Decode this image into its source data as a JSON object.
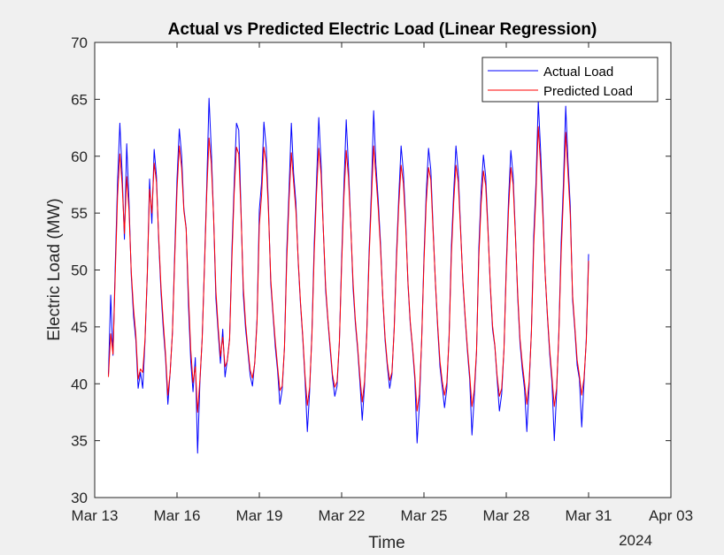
{
  "chart_data": {
    "type": "line",
    "title": "Actual vs Predicted Electric Load (Linear Regression)",
    "xlabel": "Time",
    "ylabel": "Electric Load (MW)",
    "year_label": "2024",
    "ylim": [
      30,
      70
    ],
    "y_ticks": [
      "30",
      "35",
      "40",
      "45",
      "50",
      "55",
      "60",
      "65",
      "70"
    ],
    "xlim": [
      "2024-03-13",
      "2024-04-03"
    ],
    "x_ticks": [
      {
        "date": "2024-03-13",
        "label": "Mar 13"
      },
      {
        "date": "2024-03-16",
        "label": "Mar 16"
      },
      {
        "date": "2024-03-19",
        "label": "Mar 19"
      },
      {
        "date": "2024-03-22",
        "label": "Mar 22"
      },
      {
        "date": "2024-03-25",
        "label": "Mar 25"
      },
      {
        "date": "2024-03-28",
        "label": "Mar 28"
      },
      {
        "date": "2024-03-31",
        "label": "Mar 31"
      },
      {
        "date": "2024-04-03",
        "label": "Apr 03"
      }
    ],
    "grid": false,
    "legend_position": "top-right",
    "x_start": "2024-03-13T12:00",
    "x_step_hours": 2,
    "series": [
      {
        "name": "Actual Load",
        "color": "#0000ff",
        "values": [
          40.8,
          47.8,
          42.5,
          50.5,
          57.8,
          62.9,
          58.5,
          52.7,
          61.1,
          56.0,
          49.5,
          45.9,
          43.8,
          39.6,
          41.0,
          39.6,
          43.7,
          49.5,
          58.0,
          54.1,
          60.6,
          58.3,
          52.5,
          48.0,
          44.8,
          42.2,
          38.2,
          41.0,
          44.5,
          51.6,
          58.0,
          62.4,
          60.1,
          55.4,
          53.7,
          46.9,
          42.0,
          39.3,
          42.3,
          33.9,
          40.0,
          44.0,
          50.4,
          57.4,
          65.1,
          60.5,
          54.7,
          47.5,
          44.5,
          41.8,
          44.8,
          40.6,
          42.1,
          44.0,
          51.7,
          57.6,
          62.9,
          62.3,
          55.3,
          47.8,
          44.8,
          42.8,
          40.7,
          39.8,
          41.9,
          45.7,
          55.3,
          57.7,
          63.0,
          60.8,
          55.6,
          48.8,
          46.0,
          43.2,
          41.1,
          38.2,
          39.5,
          43.2,
          51.7,
          57.1,
          62.9,
          58.5,
          55.9,
          50.7,
          47.0,
          44.0,
          40.3,
          35.8,
          39.3,
          44.5,
          52.3,
          57.7,
          63.4,
          59.4,
          53.5,
          48.2,
          45.5,
          43.0,
          40.5,
          38.9,
          39.8,
          43.6,
          51.0,
          57.4,
          63.2,
          59.0,
          53.9,
          48.4,
          45.3,
          43.0,
          40.1,
          36.8,
          39.8,
          44.6,
          51.6,
          56.9,
          64.0,
          59.2,
          56.1,
          52.4,
          47.5,
          43.8,
          41.5,
          39.6,
          40.8,
          45.0,
          51.5,
          56.5,
          60.9,
          58.6,
          54.4,
          48.8,
          45.3,
          43.1,
          40.4,
          34.8,
          38.1,
          43.9,
          51.1,
          56.8,
          60.7,
          58.8,
          53.7,
          48.9,
          44.9,
          41.5,
          39.7,
          37.9,
          39.6,
          44.3,
          52.1,
          56.8,
          60.9,
          58.6,
          53.8,
          49.0,
          45.8,
          42.9,
          40.4,
          35.5,
          38.8,
          42.8,
          51.9,
          56.9,
          60.1,
          58.2,
          53.7,
          48.6,
          44.8,
          43.3,
          40.4,
          37.6,
          39.1,
          43.0,
          50.4,
          56.2,
          60.5,
          58.3,
          53.2,
          47.6,
          43.6,
          41.3,
          39.5,
          35.8,
          39.8,
          44.7,
          53.0,
          57.7,
          64.8,
          60.6,
          55.5,
          49.7,
          45.9,
          42.6,
          40.1,
          35.0,
          39.1,
          44.6,
          52.4,
          57.6,
          64.4,
          59.5,
          55.6,
          47.4,
          44.7,
          41.6,
          40.4,
          36.2,
          40.1,
          44.0,
          51.4
        ]
      },
      {
        "name": "Predicted Load",
        "color": "#ff0000",
        "values": [
          40.6,
          44.4,
          42.6,
          49.7,
          56.5,
          60.2,
          57.5,
          53.2,
          58.2,
          55.2,
          49.8,
          46.6,
          44.3,
          40.4,
          41.3,
          41.0,
          43.9,
          49.7,
          57.1,
          55.0,
          59.4,
          57.7,
          52.9,
          48.5,
          45.4,
          42.6,
          39.0,
          41.0,
          44.5,
          51.0,
          57.0,
          60.9,
          59.0,
          55.2,
          53.6,
          47.9,
          43.0,
          40.1,
          41.5,
          37.5,
          40.3,
          43.9,
          50.2,
          56.7,
          61.6,
          59.3,
          54.7,
          48.2,
          45.0,
          42.4,
          44.1,
          41.5,
          42.0,
          43.9,
          50.9,
          56.7,
          60.8,
          60.2,
          54.9,
          48.5,
          45.3,
          43.1,
          41.2,
          40.5,
          41.8,
          45.4,
          53.9,
          56.6,
          60.8,
          59.4,
          55.1,
          49.2,
          46.3,
          43.7,
          41.5,
          39.4,
          39.8,
          43.2,
          50.8,
          56.1,
          60.3,
          57.7,
          55.2,
          50.9,
          47.2,
          44.2,
          40.7,
          38.1,
          39.7,
          44.2,
          51.4,
          56.7,
          60.7,
          58.4,
          53.5,
          48.6,
          45.7,
          43.3,
          40.8,
          39.7,
          40.2,
          43.6,
          50.4,
          56.4,
          60.5,
          58.1,
          53.8,
          48.9,
          45.6,
          43.3,
          40.6,
          38.4,
          40.2,
          44.3,
          51.0,
          56.0,
          60.9,
          58.2,
          55.4,
          51.9,
          47.6,
          44.1,
          41.8,
          40.3,
          41.0,
          44.8,
          50.9,
          55.7,
          59.2,
          57.6,
          53.9,
          49.0,
          45.5,
          43.3,
          40.8,
          37.6,
          39.1,
          43.8,
          50.6,
          55.9,
          59.0,
          57.9,
          53.4,
          49.0,
          45.2,
          42.0,
          40.2,
          39.0,
          40.1,
          44.0,
          51.3,
          55.9,
          59.2,
          57.7,
          53.5,
          49.2,
          46.0,
          43.2,
          40.8,
          38.0,
          39.5,
          42.9,
          51.1,
          55.8,
          58.7,
          57.4,
          53.4,
          48.8,
          45.1,
          43.4,
          40.7,
          38.9,
          39.6,
          43.0,
          49.9,
          55.3,
          59.0,
          57.5,
          53.0,
          48.0,
          44.0,
          41.8,
          40.1,
          38.2,
          40.2,
          44.5,
          52.1,
          56.7,
          62.6,
          59.2,
          54.8,
          49.7,
          46.1,
          43.0,
          40.6,
          38.0,
          39.6,
          44.3,
          51.4,
          56.5,
          62.1,
          58.5,
          54.8,
          47.8,
          45.0,
          42.1,
          40.7,
          39.0,
          40.5,
          43.7,
          50.8
        ]
      }
    ]
  }
}
